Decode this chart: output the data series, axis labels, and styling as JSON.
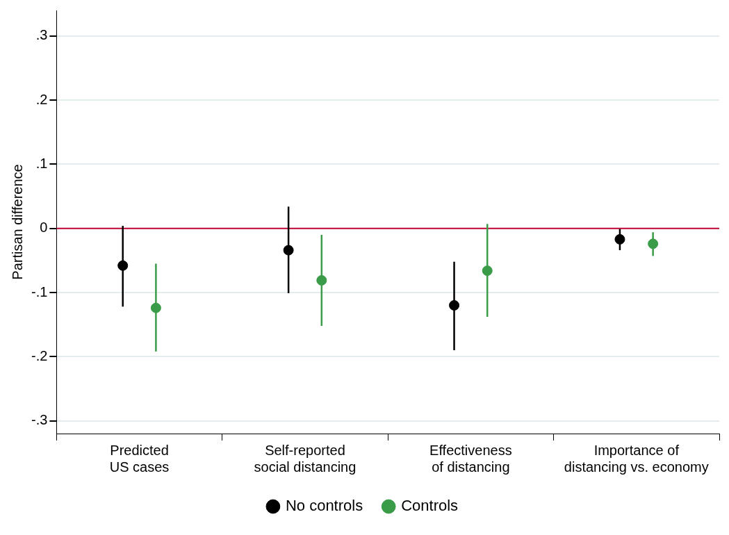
{
  "chart_data": {
    "type": "scatter",
    "ylabel": "Partisan difference",
    "categories": [
      "Predicted\nUS cases",
      "Self-reported\nsocial distancing",
      "Effectiveness\nof distancing",
      "Importance of\ndistancing vs. economy"
    ],
    "series": [
      {
        "name": "No controls",
        "color": "#000000",
        "values": [
          -0.058,
          -0.034,
          -0.12,
          -0.017
        ],
        "errors": [
          [
            -0.122,
            0.004
          ],
          [
            -0.101,
            0.034
          ],
          [
            -0.19,
            -0.052
          ],
          [
            -0.034,
            -0.001
          ]
        ]
      },
      {
        "name": "Controls",
        "color": "#3a9c48",
        "values": [
          -0.124,
          -0.081,
          -0.066,
          -0.024
        ],
        "errors": [
          [
            -0.192,
            -0.055
          ],
          [
            -0.152,
            -0.01
          ],
          [
            -0.138,
            0.007
          ],
          [
            -0.043,
            -0.006
          ]
        ]
      }
    ],
    "ylim": [
      -0.32,
      0.34
    ],
    "yticks": [
      {
        "value": -0.3,
        "label": "-.3"
      },
      {
        "value": -0.2,
        "label": "-.2"
      },
      {
        "value": -0.1,
        "label": "-.1"
      },
      0,
      {
        "value": 0.1,
        "label": ".1"
      },
      {
        "value": 0.2,
        "label": ".2"
      },
      {
        "value": 0.3,
        "label": ".3"
      }
    ],
    "ref_lines": [
      {
        "axis": "y",
        "value": 0,
        "color": "#c10534"
      }
    ],
    "grid": "y",
    "legend": "bottom",
    "marker": "circle"
  }
}
